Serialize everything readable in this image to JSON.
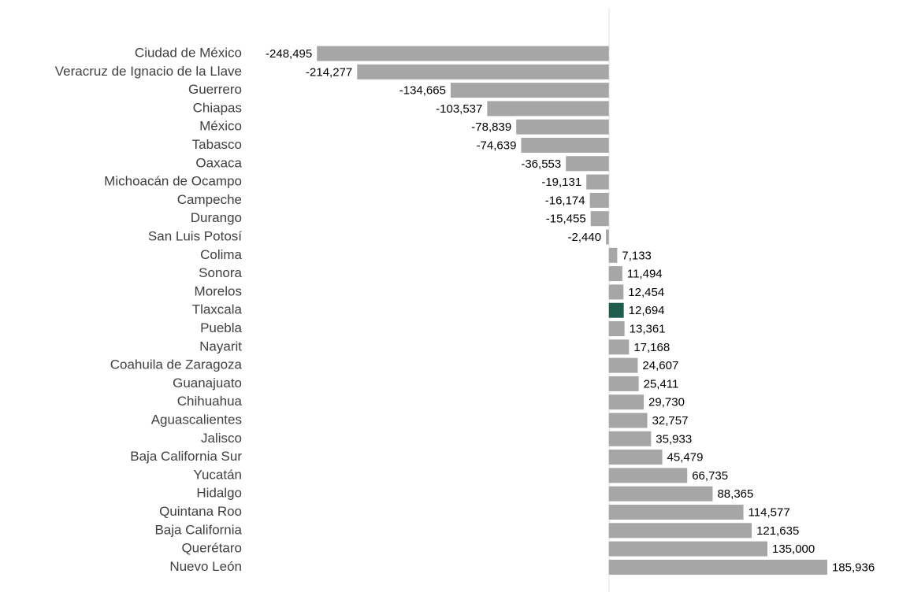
{
  "chart_data": {
    "type": "hbar",
    "categories": [
      "Ciudad de México",
      "Veracruz de Ignacio de la Llave",
      "Guerrero",
      "Chiapas",
      "México",
      "Tabasco",
      "Oaxaca",
      "Michoacán de Ocampo",
      "Campeche",
      "Durango",
      "San Luis Potosí",
      "Colima",
      "Sonora",
      "Morelos",
      "Tlaxcala",
      "Puebla",
      "Nayarit",
      "Coahuila de Zaragoza",
      "Guanajuato",
      "Chihuahua",
      "Aguascalientes",
      "Jalisco",
      "Baja California Sur",
      "Yucatán",
      "Hidalgo",
      "Quintana Roo",
      "Baja California",
      "Querétaro",
      "Nuevo León"
    ],
    "values": [
      -248495,
      -214277,
      -134665,
      -103537,
      -78839,
      -74639,
      -36553,
      -19131,
      -16174,
      -15455,
      -2440,
      7133,
      11494,
      12454,
      12694,
      13361,
      17168,
      24607,
      25411,
      29730,
      32757,
      35933,
      45479,
      66735,
      88365,
      114577,
      121635,
      135000,
      185936
    ],
    "value_labels": [
      "-248,495",
      "-214,277",
      "-134,665",
      "-103,537",
      "-78,839",
      "-74,639",
      "-36,553",
      "-19,131",
      "-16,174",
      "-15,455",
      "-2,440",
      "7,133",
      "11,494",
      "12,454",
      "12,694",
      "13,361",
      "17,168",
      "24,607",
      "25,411",
      "29,730",
      "32,757",
      "35,933",
      "45,479",
      "66,735",
      "88,365",
      "114,577",
      "121,635",
      "135,000",
      "185,936"
    ],
    "colors": [
      "#a6a6a6",
      "#a6a6a6",
      "#a6a6a6",
      "#a6a6a6",
      "#a6a6a6",
      "#a6a6a6",
      "#a6a6a6",
      "#a6a6a6",
      "#a6a6a6",
      "#a6a6a6",
      "#a6a6a6",
      "#a6a6a6",
      "#a6a6a6",
      "#a6a6a6",
      "#1f5c4b",
      "#a6a6a6",
      "#a6a6a6",
      "#a6a6a6",
      "#a6a6a6",
      "#a6a6a6",
      "#a6a6a6",
      "#a6a6a6",
      "#a6a6a6",
      "#a6a6a6",
      "#a6a6a6",
      "#a6a6a6",
      "#a6a6a6",
      "#a6a6a6",
      "#a6a6a6"
    ],
    "xlim": [
      -250000,
      190000
    ]
  }
}
